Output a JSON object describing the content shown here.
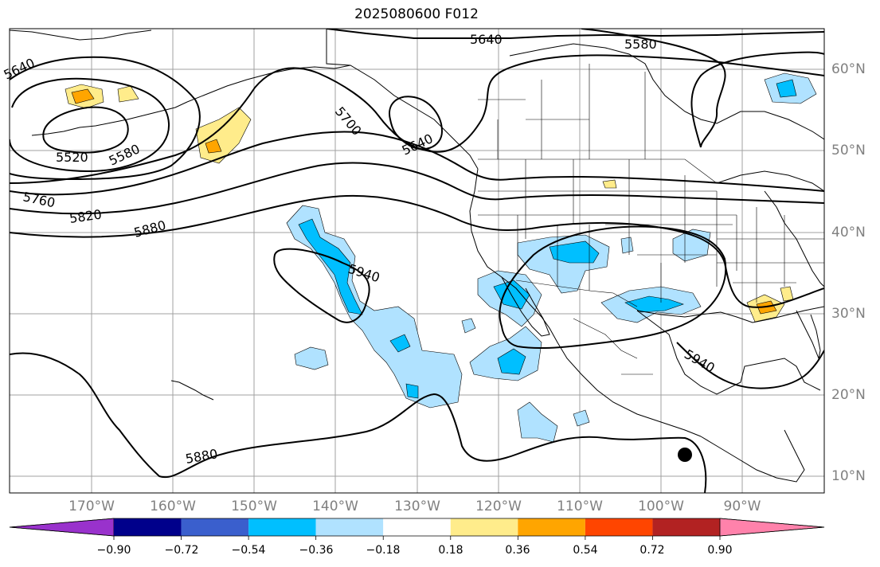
{
  "title": "2025080600 F012",
  "latitude_labels": [
    {
      "text": "60°N",
      "value": 60
    },
    {
      "text": "50°N",
      "value": 50
    },
    {
      "text": "40°N",
      "value": 40
    },
    {
      "text": "30°N",
      "value": 30
    },
    {
      "text": "20°N",
      "value": 20
    },
    {
      "text": "10°N",
      "value": 10
    }
  ],
  "longitude_labels": [
    {
      "text": "170°W",
      "value": -170
    },
    {
      "text": "160°W",
      "value": -160
    },
    {
      "text": "150°W",
      "value": -150
    },
    {
      "text": "140°W",
      "value": -140
    },
    {
      "text": "130°W",
      "value": -130
    },
    {
      "text": "120°W",
      "value": -120
    },
    {
      "text": "110°W",
      "value": -110
    },
    {
      "text": "100°W",
      "value": -100
    },
    {
      "text": "90°W",
      "value": -90
    }
  ],
  "contour_labels": [
    "5640",
    "5580",
    "5520",
    "5580",
    "5700",
    "5640",
    "5760",
    "5820",
    "5880",
    "5940",
    "5940",
    "5880",
    "5640"
  ],
  "colorbar": {
    "ticks": [
      "−0.90",
      "−0.72",
      "−0.54",
      "−0.36",
      "−0.18",
      "0.18",
      "0.36",
      "0.54",
      "0.72",
      "0.90"
    ],
    "colors": [
      "#9932cc",
      "#00008b",
      "#3a5fcd",
      "#00bfff",
      "#b0e2ff",
      "#ffffff",
      "#ffec8b",
      "#ffa500",
      "#ff4500",
      "#b22222",
      "#ff82ab"
    ]
  },
  "colors": {
    "gridline": "#a0a0a0",
    "coast": "#000000",
    "axis_label": "#808080"
  }
}
